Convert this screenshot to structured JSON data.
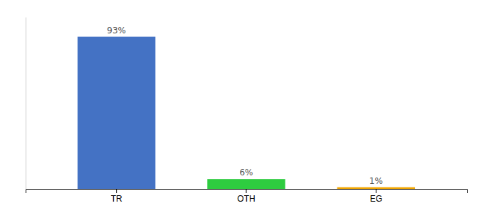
{
  "chart_data": {
    "type": "bar",
    "categories": [
      "TR",
      "OTH",
      "EG"
    ],
    "values": [
      93,
      6,
      1
    ],
    "value_labels": [
      "93%",
      "6%",
      "1%"
    ],
    "colors": [
      "#4472c4",
      "#2ecc40",
      "#f0a500"
    ],
    "ylim": [
      0,
      105
    ],
    "grid": false,
    "data_labels": true,
    "tick_labels": "x"
  }
}
